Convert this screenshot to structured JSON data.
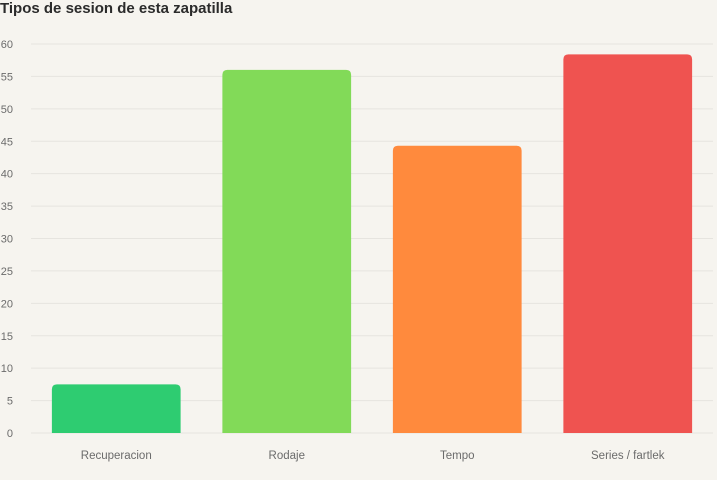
{
  "chart_data": {
    "type": "bar",
    "title": "Tipos de sesion de esta zapatilla",
    "categories": [
      "Recuperacion",
      "Rodaje",
      "Tempo",
      "Series / fartlek"
    ],
    "values": [
      7.5,
      56,
      44.3,
      58.4
    ],
    "colors": [
      "#2ecc71",
      "#82da58",
      "#ff8a3d",
      "#ef5350"
    ],
    "ylim": [
      0,
      60
    ],
    "yticks": [
      0,
      5,
      10,
      15,
      20,
      25,
      30,
      35,
      40,
      45,
      50,
      55,
      60
    ],
    "xlabel": "",
    "ylabel": "",
    "grid": true,
    "legend": "none"
  }
}
